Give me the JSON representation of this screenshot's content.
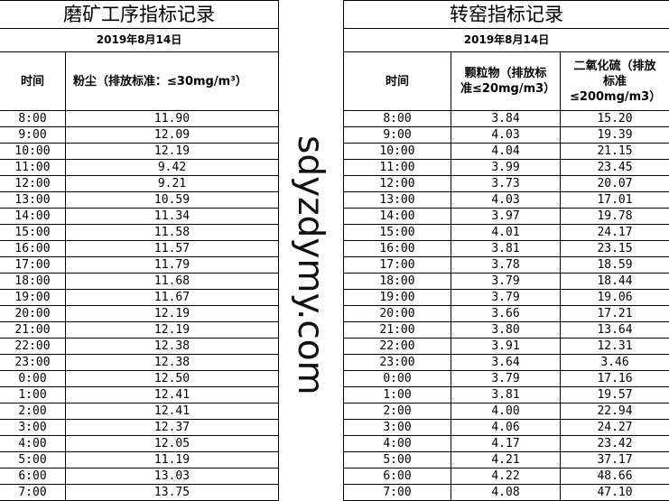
{
  "left": {
    "title": "磨矿工序指标记录",
    "date": "2019年8月14日",
    "col_time": "时间",
    "col_dust": "粉尘（排放标准：≤30mg/m³）",
    "rows": [
      [
        "8:00",
        "11.90"
      ],
      [
        "9:00",
        "12.09"
      ],
      [
        "10:00",
        "12.19"
      ],
      [
        "11:00",
        "9.42"
      ],
      [
        "12:00",
        "9.21"
      ],
      [
        "13:00",
        "10.59"
      ],
      [
        "14:00",
        "11.34"
      ],
      [
        "15:00",
        "11.58"
      ],
      [
        "16:00",
        "11.57"
      ],
      [
        "17:00",
        "11.79"
      ],
      [
        "18:00",
        "11.68"
      ],
      [
        "19:00",
        "11.67"
      ],
      [
        "20:00",
        "12.19"
      ],
      [
        "21:00",
        "12.19"
      ],
      [
        "22:00",
        "12.38"
      ],
      [
        "23:00",
        "12.38"
      ],
      [
        "0:00",
        "12.50"
      ],
      [
        "1:00",
        "12.41"
      ],
      [
        "2:00",
        "12.41"
      ],
      [
        "3:00",
        "12.37"
      ],
      [
        "4:00",
        "12.05"
      ],
      [
        "5:00",
        "11.19"
      ],
      [
        "6:00",
        "13.03"
      ],
      [
        "7:00",
        "13.75"
      ]
    ]
  },
  "right": {
    "title": "转窑指标记录",
    "date": "2019年8月14日",
    "col_time": "时间",
    "col_pm": "颗粒物（排放标准≤20mg/m3）",
    "col_so2": "二氧化硫（排放标准≤200mg/m3）",
    "rows": [
      [
        "8:00",
        "3.84",
        "15.20"
      ],
      [
        "9:00",
        "4.03",
        "19.39"
      ],
      [
        "10:00",
        "4.04",
        "21.15"
      ],
      [
        "11:00",
        "3.99",
        "23.45"
      ],
      [
        "12:00",
        "3.73",
        "20.07"
      ],
      [
        "13:00",
        "4.03",
        "17.01"
      ],
      [
        "14:00",
        "3.97",
        "19.78"
      ],
      [
        "15:00",
        "4.01",
        "24.17"
      ],
      [
        "16:00",
        "3.81",
        "23.15"
      ],
      [
        "17:00",
        "3.78",
        "18.59"
      ],
      [
        "18:00",
        "3.79",
        "18.44"
      ],
      [
        "19:00",
        "3.79",
        "19.06"
      ],
      [
        "20:00",
        "3.66",
        "17.21"
      ],
      [
        "21:00",
        "3.80",
        "13.64"
      ],
      [
        "22:00",
        "3.91",
        "12.31"
      ],
      [
        "23:00",
        "3.64",
        "3.46"
      ],
      [
        "0:00",
        "3.79",
        "17.16"
      ],
      [
        "1:00",
        "3.81",
        "19.57"
      ],
      [
        "2:00",
        "4.00",
        "22.94"
      ],
      [
        "3:00",
        "4.06",
        "24.27"
      ],
      [
        "4:00",
        "4.17",
        "23.42"
      ],
      [
        "5:00",
        "4.21",
        "37.17"
      ],
      [
        "6:00",
        "4.22",
        "48.66"
      ],
      [
        "7:00",
        "4.08",
        "47.10"
      ]
    ]
  },
  "watermark": "sdyzdymy.com"
}
